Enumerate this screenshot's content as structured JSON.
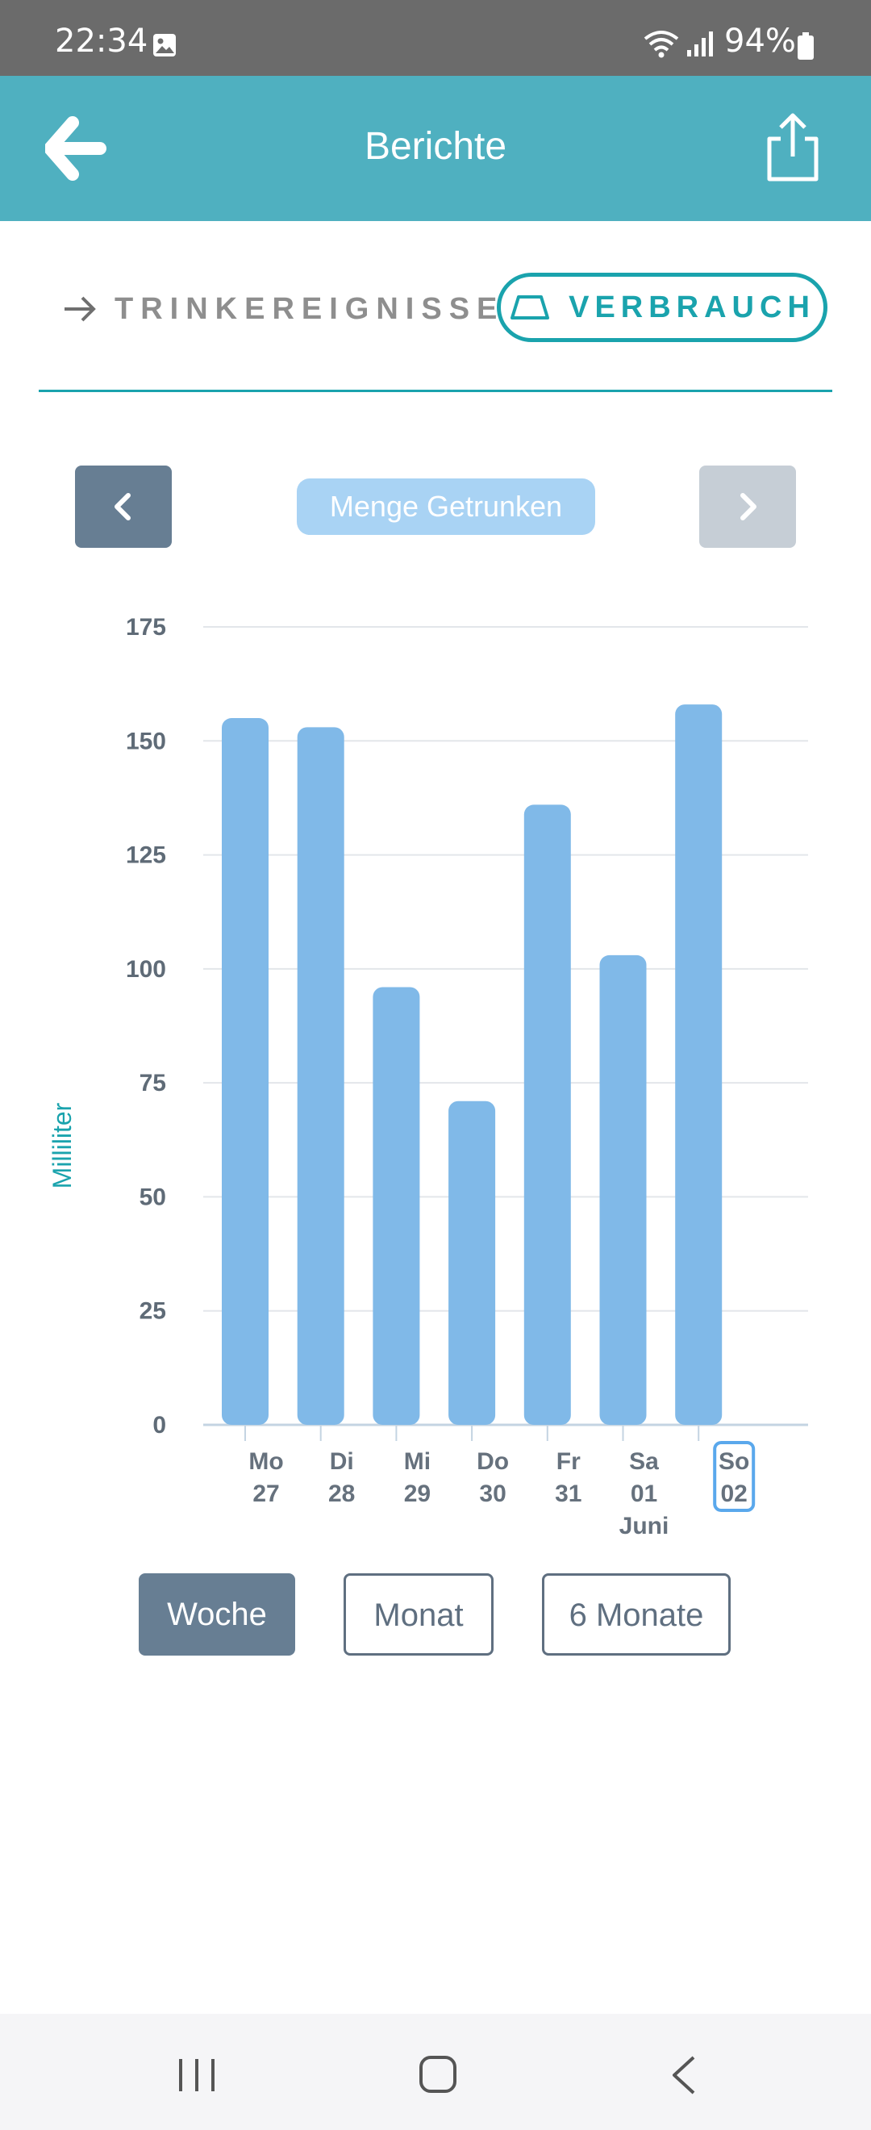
{
  "status_bar": {
    "time": "22:34",
    "battery": "94%"
  },
  "header": {
    "title": "Berichte"
  },
  "tabs": {
    "drink_events": "TRINKEREIGNISSE",
    "consumption": "VERBRAUCH"
  },
  "chart_nav": {
    "metric": "Menge Getrunken"
  },
  "chart_data": {
    "type": "bar",
    "ylabel": "Milliliter",
    "ylim": [
      0,
      175
    ],
    "y_ticks": [
      "175",
      "150",
      "125",
      "100",
      "75",
      "50",
      "25",
      "0"
    ],
    "categories": [
      "Mo 27",
      "Di 28",
      "Mi 29",
      "Do 30",
      "Fr 31",
      "Sa 01 Juni",
      "So 02"
    ],
    "x_labels": [
      [
        "Mo",
        "27"
      ],
      [
        "Di",
        "28"
      ],
      [
        "Mi",
        "29"
      ],
      [
        "Do",
        "30"
      ],
      [
        "Fr",
        "31"
      ],
      [
        "Sa",
        "01",
        "Juni"
      ],
      [
        "So",
        "02"
      ]
    ],
    "values": [
      155,
      153,
      96,
      71,
      136,
      103,
      158
    ],
    "selected_index": 6,
    "bar_color": "#80b9e8",
    "selected_color": "#5aa8ec",
    "grid": true
  },
  "range": {
    "week": "Woche",
    "month": "Monat",
    "six_months": "6 Monate"
  },
  "colors": {
    "header": "#4fb0c0",
    "accent": "#1aa3ad",
    "button_dark": "#677e93"
  }
}
